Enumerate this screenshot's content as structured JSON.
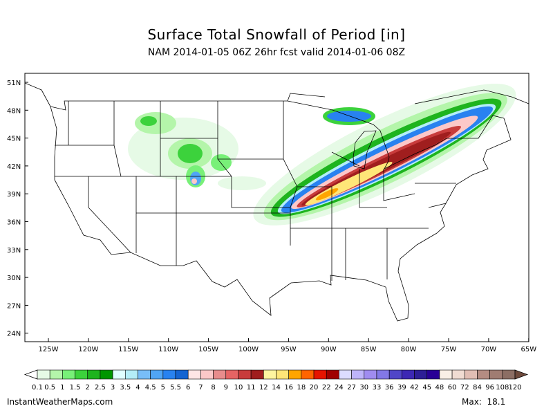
{
  "header": {
    "title": "Surface Total Snowfall of Period [in]",
    "subtitle": "NAM 2014-01-05 06Z 26hr fcst valid 2014-01-06 08Z"
  },
  "map": {
    "lat_labels": [
      "51N",
      "48N",
      "45N",
      "42N",
      "39N",
      "36N",
      "33N",
      "30N",
      "27N",
      "24N"
    ],
    "lon_labels": [
      "125W",
      "120W",
      "115W",
      "110W",
      "105W",
      "100W",
      "95W",
      "90W",
      "85W",
      "80W",
      "75W",
      "70W",
      "65W"
    ],
    "snow_maximum_region": "Missouri / Illinois to Michigan / Ontario band"
  },
  "colorbar": {
    "labels": [
      "0.1",
      "0.5",
      "1",
      "1.5",
      "2",
      "2.5",
      "3",
      "3.5",
      "4",
      "4.5",
      "5",
      "5.5",
      "6",
      "7",
      "8",
      "9",
      "10",
      "11",
      "12",
      "14",
      "16",
      "18",
      "20",
      "22",
      "24",
      "27",
      "30",
      "33",
      "36",
      "39",
      "42",
      "45",
      "48",
      "60",
      "72",
      "84",
      "96",
      "108",
      "120"
    ],
    "colors": [
      "#e6fae6",
      "#b4f5aa",
      "#78f078",
      "#3cd23c",
      "#1eb41e",
      "#009600",
      "#e0ffff",
      "#b4eef8",
      "#78bef8",
      "#50a5f5",
      "#2882f0",
      "#1464d2",
      "#ffe6e6",
      "#fcc8c8",
      "#e88c8c",
      "#e66464",
      "#c83c3c",
      "#a01e1e",
      "#fff5a0",
      "#ffe678",
      "#ffa500",
      "#ff6400",
      "#e61400",
      "#a00000",
      "#dcdcff",
      "#beb4fa",
      "#a08cf0",
      "#8278e6",
      "#5046c8",
      "#3c28b4",
      "#2d1e96",
      "#280096",
      "#faf0e6",
      "#f0dcd2",
      "#e1beb4",
      "#b48c82",
      "#a07c72",
      "#8c6e64"
    ],
    "over_color": "#6e4a3c",
    "under_color": "#ffffff"
  },
  "footer": {
    "site": "InstantWeatherMaps.com",
    "max_label": "Max:  18.1"
  }
}
